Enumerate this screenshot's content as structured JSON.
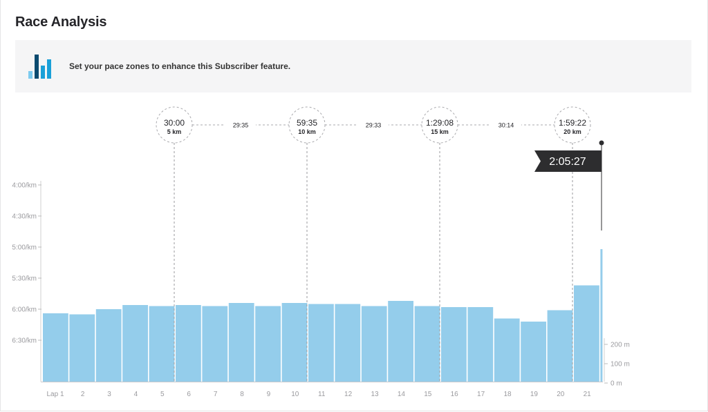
{
  "page": {
    "title": "Race Analysis",
    "banner_text": "Set your pace zones to enhance this Subscriber feature.",
    "banner_icon": "bar-chart-icon",
    "finish_time": "2:05:27"
  },
  "colors": {
    "bar": "#94cdeb",
    "banner_icon_dark": "#0b4a6f",
    "banner_icon_mid": "#1aa0d8",
    "banner_icon_light": "#7ccbef",
    "flag_bg": "#2d2d2f"
  },
  "chart_data": {
    "type": "bar",
    "x_label_prefix": "Lap",
    "categories": [
      "Lap 1",
      "2",
      "3",
      "4",
      "5",
      "6",
      "7",
      "8",
      "9",
      "10",
      "11",
      "12",
      "13",
      "14",
      "15",
      "16",
      "17",
      "18",
      "19",
      "20",
      "21"
    ],
    "pace_ticks": [
      "4:00/km",
      "4:30/km",
      "5:00/km",
      "5:30/km",
      "6:00/km",
      "6:30/km"
    ],
    "pace_tick_seconds": [
      240,
      270,
      300,
      330,
      360,
      390
    ],
    "elevation_ticks": [
      "200 m",
      "100 m",
      "0 m"
    ],
    "elevation_tick_values": [
      200,
      100,
      0
    ],
    "pace_seconds_per_km": [
      364,
      365,
      360,
      356,
      357,
      356,
      357,
      354,
      357,
      354,
      355,
      355,
      357,
      352,
      357,
      358,
      358,
      369,
      372,
      361,
      337,
      302
    ],
    "last_bar_partial": true,
    "splits": [
      {
        "time": "30:00",
        "distance": "5 km"
      },
      {
        "time": "59:35",
        "distance": "10 km"
      },
      {
        "time": "1:29:08",
        "distance": "15 km"
      },
      {
        "time": "1:59:22",
        "distance": "20 km"
      }
    ],
    "segment_times": [
      "29:35",
      "29:33",
      "30:14"
    ]
  }
}
